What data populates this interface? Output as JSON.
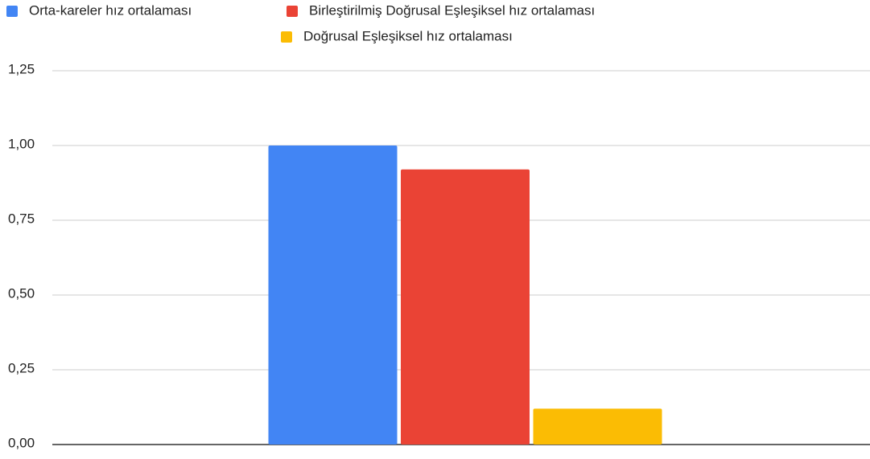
{
  "chart_data": {
    "type": "bar",
    "categories": [
      null
    ],
    "series": [
      {
        "name": "Orta-kareler hız ortalaması",
        "color": "#4285f4",
        "values": [
          1.0
        ]
      },
      {
        "name": "Birleştirilmiş Doğrusal Eşleşiksel hız ortalaması",
        "color": "#ea4335",
        "values": [
          0.92
        ]
      },
      {
        "name": "Doğrusal Eşleşiksel hız ortalaması",
        "color": "#fbbc04",
        "values": [
          0.12
        ]
      }
    ],
    "ylim": [
      0,
      1.25
    ],
    "yticks": [
      {
        "value": 0,
        "label": "0,00"
      },
      {
        "value": 0.25,
        "label": "0,25"
      },
      {
        "value": 0.5,
        "label": "0,50"
      },
      {
        "value": 0.75,
        "label": "0,75"
      },
      {
        "value": 1,
        "label": "1,00"
      },
      {
        "value": 1.25,
        "label": "1,25"
      }
    ],
    "grid": true,
    "legend": "top"
  }
}
